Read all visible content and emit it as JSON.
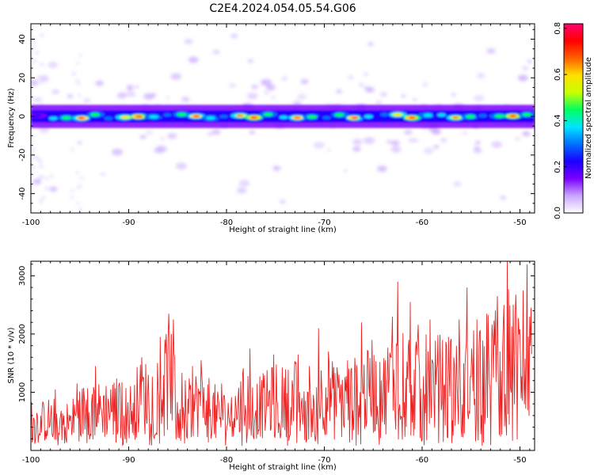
{
  "figure": {
    "title": "C2E4.2024.054.05.54.G06"
  },
  "chart_data": [
    {
      "type": "heatmap",
      "xlabel": "Height of straight line (km)",
      "ylabel": "Frequency (Hz)",
      "xlim": [
        -100,
        -48.5
      ],
      "ylim": [
        -50,
        48
      ],
      "xticks": [
        -100,
        -90,
        -80,
        -70,
        -60,
        -50
      ],
      "yticks": [
        -40,
        -20,
        0,
        20,
        40
      ],
      "band": {
        "center_hz": 0,
        "x_start": -100,
        "x_end": -48.5,
        "core_halfwidth_hz": 2,
        "outer_halfwidth_hz": 6,
        "amplitude_samples": [
          0.32,
          0.45,
          0.6,
          0.74,
          0.55,
          0.4,
          0.62,
          0.76,
          0.5,
          0.35,
          0.58,
          0.72,
          0.48,
          0.38,
          0.66,
          0.78,
          0.52,
          0.42,
          0.7,
          0.6,
          0.36,
          0.55,
          0.74,
          0.47,
          0.4,
          0.63,
          0.77,
          0.5,
          0.44,
          0.69,
          0.58,
          0.39,
          0.6,
          0.75,
          0.52
        ]
      },
      "colorbar": {
        "label": "Normalized spectral amplitude",
        "ticks": [
          0.0,
          0.2,
          0.4,
          0.6,
          0.8
        ],
        "range": [
          0,
          0.82
        ],
        "colormap": [
          "#ffffff",
          "#c9a6ff",
          "#7a00ff",
          "#1a00ff",
          "#0070ff",
          "#00e5ff",
          "#00ff60",
          "#c8ff00",
          "#ffe000",
          "#ff6000",
          "#ff0000",
          "#ff0070"
        ]
      }
    },
    {
      "type": "line",
      "xlabel": "Height of straight line (km)",
      "ylabel": "SNR (10 * v/v)",
      "xlim": [
        -100,
        -48.5
      ],
      "ylim": [
        0,
        3250
      ],
      "xticks": [
        -100,
        -90,
        -80,
        -70,
        -60,
        -50
      ],
      "yticks": [
        1000,
        2000,
        3000
      ],
      "series": [
        {
          "color": "#ee2222",
          "x_start": -100,
          "x_end": -48.8,
          "envelope": [
            [
              -100,
              450
            ],
            [
              -98,
              550
            ],
            [
              -96,
              500
            ],
            [
              -95,
              650
            ],
            [
              -94,
              750
            ],
            [
              -93,
              700
            ],
            [
              -92,
              750
            ],
            [
              -91,
              750
            ],
            [
              -90,
              650
            ],
            [
              -89,
              900
            ],
            [
              -88,
              950
            ],
            [
              -87,
              1000
            ],
            [
              -86,
              1200
            ],
            [
              -85.5,
              1400
            ],
            [
              -85,
              900
            ],
            [
              -84,
              700
            ],
            [
              -83,
              850
            ],
            [
              -82,
              800
            ],
            [
              -81,
              650
            ],
            [
              -80,
              600
            ],
            [
              -79,
              700
            ],
            [
              -78,
              900
            ],
            [
              -77,
              750
            ],
            [
              -76,
              800
            ],
            [
              -75,
              900
            ],
            [
              -74,
              850
            ],
            [
              -73,
              950
            ],
            [
              -72,
              600
            ],
            [
              -71,
              800
            ],
            [
              -70,
              1000
            ],
            [
              -69,
              900
            ],
            [
              -68,
              850
            ],
            [
              -67,
              950
            ],
            [
              -66,
              1000
            ],
            [
              -65,
              1050
            ],
            [
              -64,
              1000
            ],
            [
              -63,
              1300
            ],
            [
              -62,
              1400
            ],
            [
              -61,
              1250
            ],
            [
              -60,
              1300
            ],
            [
              -59,
              1150
            ],
            [
              -58,
              1200
            ],
            [
              -57,
              1300
            ],
            [
              -56,
              1000
            ],
            [
              -55,
              1250
            ],
            [
              -54,
              1500
            ],
            [
              -53,
              1400
            ],
            [
              -52,
              1550
            ],
            [
              -51,
              1700
            ],
            [
              -50,
              1550
            ],
            [
              -49,
              1700
            ]
          ],
          "peaks": [
            [
              -99.9,
              830
            ],
            [
              -97.5,
              1050
            ],
            [
              -95.3,
              1150
            ],
            [
              -93.4,
              1450
            ],
            [
              -91,
              1100
            ],
            [
              -88.7,
              1600
            ],
            [
              -86.8,
              1950
            ],
            [
              -86.2,
              2000
            ],
            [
              -85.9,
              2350
            ],
            [
              -83.5,
              1450
            ],
            [
              -82.6,
              1550
            ],
            [
              -80.5,
              1150
            ],
            [
              -77.6,
              1750
            ],
            [
              -75.2,
              1650
            ],
            [
              -72.7,
              1650
            ],
            [
              -71.5,
              1450
            ],
            [
              -70.6,
              2100
            ],
            [
              -69.6,
              1700
            ],
            [
              -67.6,
              1550
            ],
            [
              -66.2,
              2200
            ],
            [
              -65.1,
              1900
            ],
            [
              -63,
              2300
            ],
            [
              -62.5,
              2900
            ],
            [
              -61.2,
              2550
            ],
            [
              -59.2,
              2250
            ],
            [
              -57.3,
              1950
            ],
            [
              -56.2,
              2250
            ],
            [
              -55.4,
              2800
            ],
            [
              -54.4,
              2250
            ],
            [
              -53.4,
              2350
            ],
            [
              -52.3,
              2650
            ],
            [
              -51.6,
              2500
            ],
            [
              -51.3,
              3250
            ],
            [
              -50.5,
              2300
            ],
            [
              -49.7,
              2750
            ],
            [
              -49.3,
              3200
            ],
            [
              -49,
              2300
            ]
          ]
        }
      ]
    }
  ]
}
